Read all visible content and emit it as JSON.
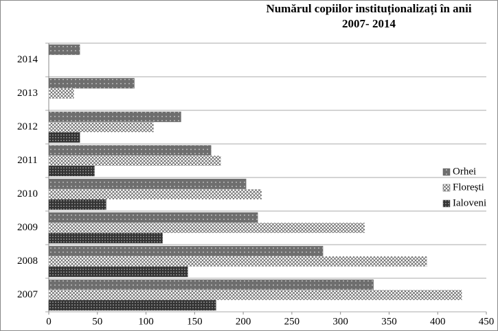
{
  "chart_data": {
    "type": "barh",
    "title_lines": [
      "Numărul copiilor instituționalizați în anii",
      "2007- 2014"
    ],
    "categories": [
      "2007",
      "2008",
      "2009",
      "2010",
      "2011",
      "2012",
      "2013",
      "2014"
    ],
    "series": [
      {
        "name": "Orhei",
        "color": "#707070",
        "values": [
          334,
          282,
          215,
          203,
          167,
          136,
          88,
          32
        ]
      },
      {
        "name": "Florești",
        "color": "#ffffff",
        "values": [
          425,
          389,
          325,
          219,
          177,
          108,
          26,
          null
        ]
      },
      {
        "name": "Ialoveni",
        "color": "#404040",
        "values": [
          172,
          143,
          117,
          59,
          47,
          32,
          null,
          null
        ]
      }
    ],
    "xlim": [
      0,
      450
    ],
    "xticks": [
      0,
      50,
      100,
      150,
      200,
      250,
      300,
      350,
      400,
      450
    ],
    "legend": "right"
  }
}
